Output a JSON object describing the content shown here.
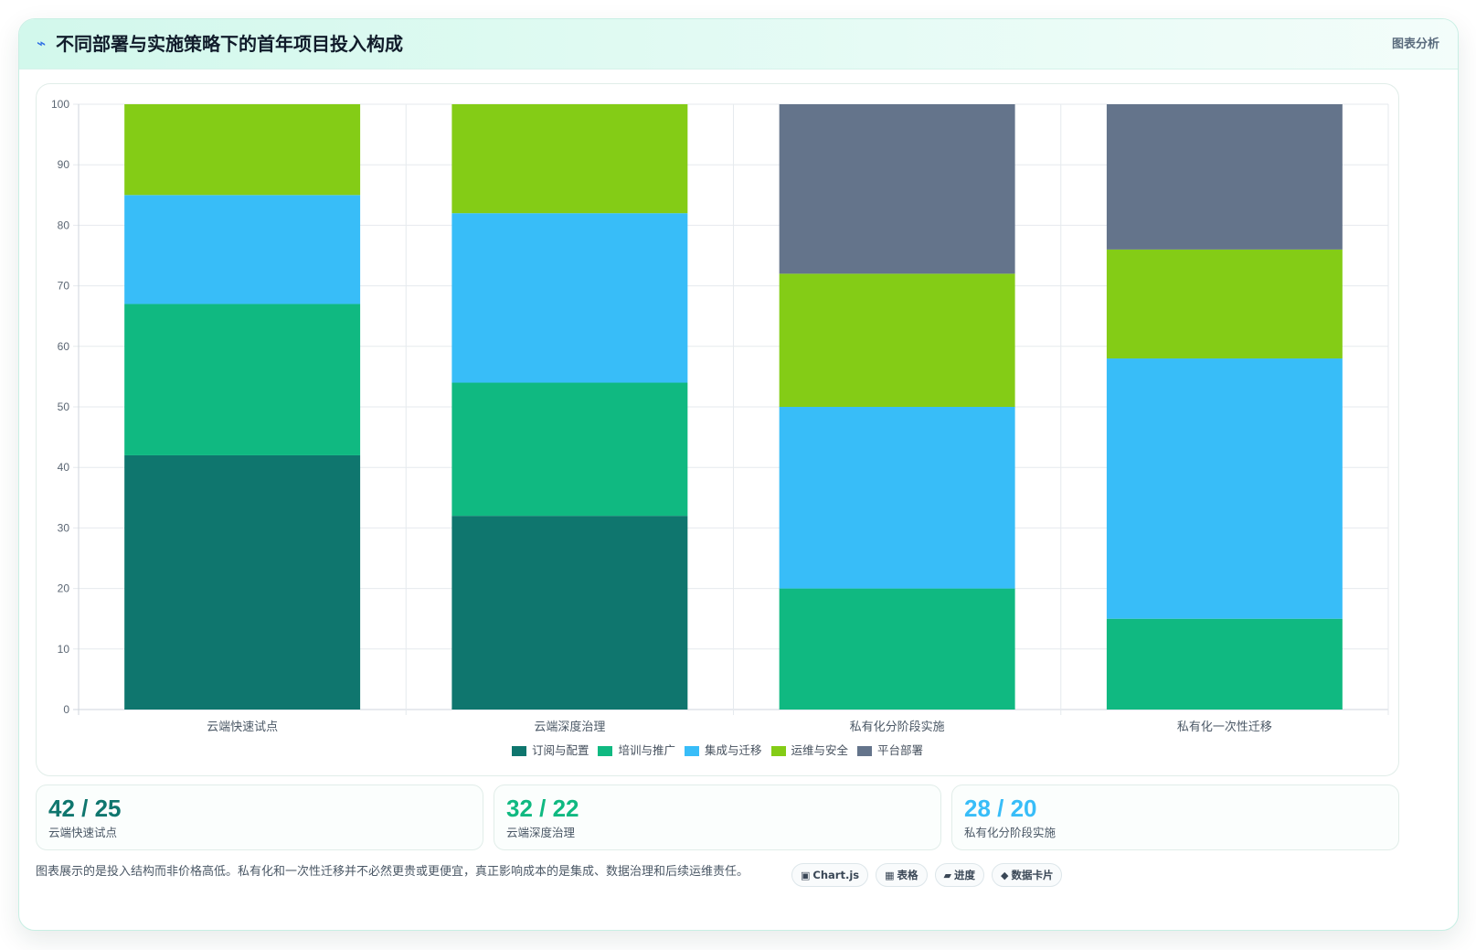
{
  "header": {
    "icon": "chart-spark-icon",
    "title": "不同部署与实施策略下的首年项目投入构成",
    "tag": "图表分析"
  },
  "chart_data": {
    "type": "bar",
    "stacked": true,
    "title": "",
    "xlabel": "",
    "ylabel": "",
    "ylim": [
      0,
      100
    ],
    "y_ticks": [
      0,
      10,
      20,
      30,
      40,
      50,
      60,
      70,
      80,
      90,
      100
    ],
    "grid": true,
    "legend_position": "bottom",
    "categories": [
      "云端快速试点",
      "云端深度治理",
      "私有化分阶段实施",
      "私有化一次性迁移"
    ],
    "series": [
      {
        "name": "订阅与配置",
        "color": "#0f766e",
        "values": [
          42,
          32,
          0,
          0
        ]
      },
      {
        "name": "培训与推广",
        "color": "#10b981",
        "values": [
          25,
          22,
          20,
          15
        ]
      },
      {
        "name": "集成与迁移",
        "color": "#38bdf8",
        "values": [
          18,
          28,
          30,
          43
        ]
      },
      {
        "name": "运维与安全",
        "color": "#84cc16",
        "values": [
          15,
          18,
          22,
          18
        ]
      },
      {
        "name": "平台部署",
        "color": "#64748b",
        "values": [
          0,
          0,
          28,
          24
        ]
      }
    ]
  },
  "stats": [
    {
      "value": "42 / 25",
      "label": "云端快速试点",
      "color": "#0f766e"
    },
    {
      "value": "32 / 22",
      "label": "云端深度治理",
      "color": "#10b981"
    },
    {
      "value": "28 / 20",
      "label": "私有化分阶段实施",
      "color": "#38bdf8"
    }
  ],
  "footer": {
    "note": "图表展示的是投入结构而非价格高低。私有化和一次性迁移并不必然更贵或更便宜，真正影响成本的是集成、数据治理和后续运维责任。",
    "pills": [
      {
        "icon": "▣",
        "icon_name": "chartjs-icon",
        "label": "Chart.js"
      },
      {
        "icon": "▦",
        "icon_name": "table-icon",
        "label": "表格"
      },
      {
        "icon": "▰",
        "icon_name": "progress-icon",
        "label": "进度"
      },
      {
        "icon": "◆",
        "icon_name": "data-card-icon",
        "label": "数据卡片"
      }
    ]
  }
}
